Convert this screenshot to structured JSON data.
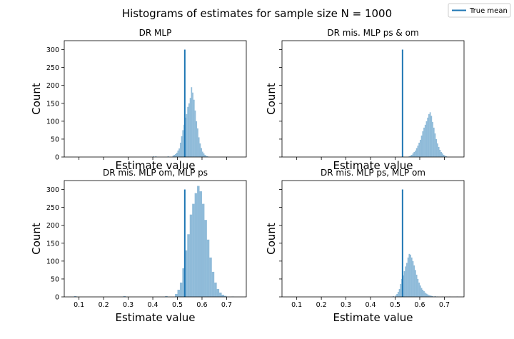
{
  "figure": {
    "suptitle": "Histograms of estimates for sample size N = 1000",
    "legend": {
      "label": "True mean",
      "placement": "top-right",
      "color": "#1f77b4"
    },
    "bar_color": "#1f77b4",
    "bar_opacity": 0.5
  },
  "chart_data": [
    {
      "type": "bar",
      "title": "DR MLP",
      "xlabel": "Estimate value",
      "ylabel": "Count",
      "xlim": [
        0.04,
        0.78
      ],
      "ylim": [
        0,
        325
      ],
      "xticks": [
        0.1,
        0.2,
        0.3,
        0.4,
        0.5,
        0.6,
        0.7
      ],
      "yticks": [
        0,
        50,
        100,
        150,
        200,
        250,
        300
      ],
      "show_xticklabels": false,
      "show_yticklabels": true,
      "true_mean": 0.53,
      "true_mean_height": 300,
      "bin_width": 0.005,
      "bins": [
        [
          0.4,
          2
        ],
        [
          0.41,
          2
        ],
        [
          0.46,
          2
        ],
        [
          0.48,
          4
        ],
        [
          0.485,
          6
        ],
        [
          0.49,
          8
        ],
        [
          0.495,
          12
        ],
        [
          0.5,
          18
        ],
        [
          0.505,
          24
        ],
        [
          0.51,
          40
        ],
        [
          0.515,
          58
        ],
        [
          0.52,
          75
        ],
        [
          0.525,
          90
        ],
        [
          0.53,
          110
        ],
        [
          0.535,
          120
        ],
        [
          0.54,
          140
        ],
        [
          0.545,
          150
        ],
        [
          0.55,
          165
        ],
        [
          0.555,
          195
        ],
        [
          0.56,
          180
        ],
        [
          0.565,
          160
        ],
        [
          0.57,
          130
        ],
        [
          0.575,
          100
        ],
        [
          0.58,
          80
        ],
        [
          0.585,
          55
        ],
        [
          0.59,
          38
        ],
        [
          0.595,
          25
        ],
        [
          0.6,
          15
        ],
        [
          0.605,
          10
        ],
        [
          0.61,
          6
        ],
        [
          0.615,
          3
        ],
        [
          0.62,
          2
        ],
        [
          0.7,
          1
        ]
      ]
    },
    {
      "type": "bar",
      "title": "DR mis. MLP ps & om",
      "xlabel": "Estimate value",
      "ylabel": "Count",
      "xlim": [
        0.04,
        0.78
      ],
      "ylim": [
        0,
        325
      ],
      "xticks": [
        0.1,
        0.2,
        0.3,
        0.4,
        0.5,
        0.6,
        0.7
      ],
      "yticks": [
        0,
        50,
        100,
        150,
        200,
        250,
        300
      ],
      "show_xticklabels": false,
      "show_yticklabels": false,
      "true_mean": 0.53,
      "true_mean_height": 300,
      "bin_width": 0.005,
      "bins": [
        [
          0.555,
          2
        ],
        [
          0.56,
          4
        ],
        [
          0.565,
          6
        ],
        [
          0.57,
          10
        ],
        [
          0.575,
          14
        ],
        [
          0.58,
          18
        ],
        [
          0.585,
          25
        ],
        [
          0.59,
          32
        ],
        [
          0.595,
          40
        ],
        [
          0.6,
          48
        ],
        [
          0.605,
          60
        ],
        [
          0.61,
          72
        ],
        [
          0.615,
          82
        ],
        [
          0.62,
          90
        ],
        [
          0.625,
          100
        ],
        [
          0.63,
          110
        ],
        [
          0.635,
          120
        ],
        [
          0.64,
          125
        ],
        [
          0.645,
          115
        ],
        [
          0.65,
          98
        ],
        [
          0.655,
          82
        ],
        [
          0.66,
          66
        ],
        [
          0.665,
          50
        ],
        [
          0.67,
          38
        ],
        [
          0.675,
          28
        ],
        [
          0.68,
          20
        ],
        [
          0.685,
          14
        ],
        [
          0.69,
          10
        ],
        [
          0.695,
          6
        ],
        [
          0.7,
          4
        ],
        [
          0.705,
          2
        ],
        [
          0.71,
          1
        ]
      ]
    },
    {
      "type": "bar",
      "title": "DR mis. MLP om, MLP ps",
      "xlabel": "Estimate value",
      "ylabel": "Count",
      "xlim": [
        0.04,
        0.78
      ],
      "ylim": [
        0,
        325
      ],
      "xticks": [
        0.1,
        0.2,
        0.3,
        0.4,
        0.5,
        0.6,
        0.7
      ],
      "yticks": [
        0,
        50,
        100,
        150,
        200,
        250,
        300
      ],
      "show_xticklabels": true,
      "show_yticklabels": true,
      "true_mean": 0.53,
      "true_mean_height": 300,
      "bin_width": 0.01,
      "bins": [
        [
          0.08,
          2
        ],
        [
          0.28,
          2
        ],
        [
          0.45,
          2
        ],
        [
          0.49,
          8
        ],
        [
          0.5,
          20
        ],
        [
          0.51,
          40
        ],
        [
          0.52,
          80
        ],
        [
          0.53,
          130
        ],
        [
          0.54,
          175
        ],
        [
          0.55,
          230
        ],
        [
          0.56,
          260
        ],
        [
          0.57,
          290
        ],
        [
          0.58,
          310
        ],
        [
          0.59,
          295
        ],
        [
          0.6,
          260
        ],
        [
          0.61,
          215
        ],
        [
          0.62,
          160
        ],
        [
          0.63,
          110
        ],
        [
          0.64,
          70
        ],
        [
          0.65,
          40
        ],
        [
          0.66,
          22
        ],
        [
          0.67,
          12
        ],
        [
          0.68,
          6
        ],
        [
          0.69,
          3
        ],
        [
          0.72,
          1
        ]
      ]
    },
    {
      "type": "bar",
      "title": "DR mis. MLP ps, MLP om",
      "xlabel": "Estimate value",
      "ylabel": "Count",
      "xlim": [
        0.04,
        0.78
      ],
      "ylim": [
        0,
        325
      ],
      "xticks": [
        0.1,
        0.2,
        0.3,
        0.4,
        0.5,
        0.6,
        0.7
      ],
      "yticks": [
        0,
        50,
        100,
        150,
        200,
        250,
        300
      ],
      "show_xticklabels": true,
      "show_yticklabels": false,
      "true_mean": 0.53,
      "true_mean_height": 300,
      "bin_width": 0.005,
      "bins": [
        [
          0.49,
          2
        ],
        [
          0.5,
          4
        ],
        [
          0.505,
          8
        ],
        [
          0.51,
          14
        ],
        [
          0.515,
          22
        ],
        [
          0.52,
          36
        ],
        [
          0.525,
          50
        ],
        [
          0.53,
          60
        ],
        [
          0.535,
          72
        ],
        [
          0.54,
          85
        ],
        [
          0.545,
          95
        ],
        [
          0.55,
          110
        ],
        [
          0.555,
          120
        ],
        [
          0.56,
          118
        ],
        [
          0.565,
          110
        ],
        [
          0.57,
          100
        ],
        [
          0.575,
          88
        ],
        [
          0.58,
          75
        ],
        [
          0.585,
          62
        ],
        [
          0.59,
          50
        ],
        [
          0.595,
          40
        ],
        [
          0.6,
          32
        ],
        [
          0.605,
          25
        ],
        [
          0.61,
          20
        ],
        [
          0.615,
          16
        ],
        [
          0.62,
          12
        ],
        [
          0.625,
          9
        ],
        [
          0.63,
          7
        ],
        [
          0.635,
          5
        ],
        [
          0.64,
          4
        ],
        [
          0.645,
          3
        ],
        [
          0.65,
          2
        ],
        [
          0.66,
          2
        ],
        [
          0.67,
          1
        ],
        [
          0.69,
          1
        ],
        [
          0.72,
          1
        ],
        [
          0.75,
          1
        ]
      ]
    }
  ]
}
